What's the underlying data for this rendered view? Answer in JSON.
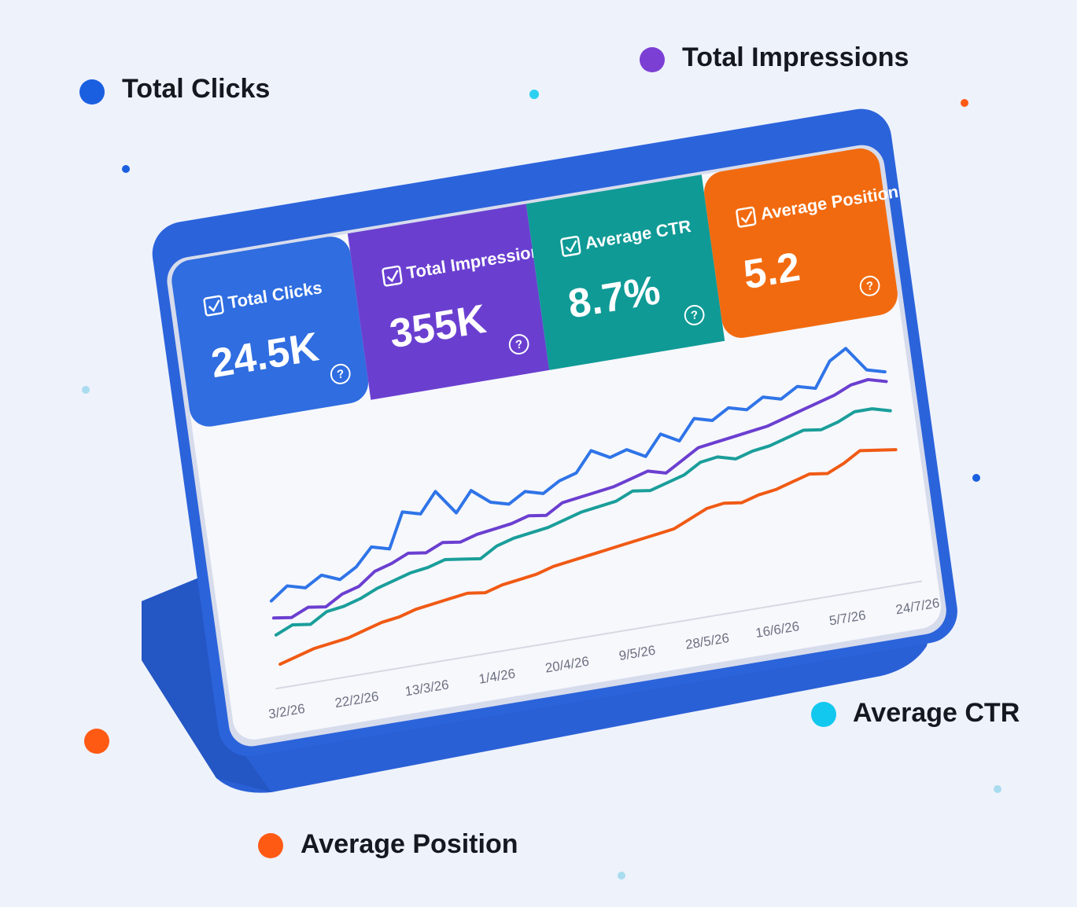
{
  "chart_data": {
    "type": "line",
    "categories": [
      "3/2/26",
      null,
      null,
      null,
      "22/2/26",
      null,
      null,
      null,
      "13/3/26",
      null,
      null,
      null,
      "1/4/26",
      null,
      null,
      null,
      "20/4/26",
      null,
      null,
      null,
      "9/5/26",
      null,
      null,
      null,
      "28/5/26",
      null,
      null,
      null,
      "16/6/26",
      null,
      null,
      null,
      "5/7/26",
      null,
      null,
      null,
      "24/7/26"
    ],
    "series": [
      {
        "name": "Total Clicks",
        "color": "#2f74e8",
        "values": [
          35,
          40,
          38,
          42,
          39,
          43,
          50,
          48,
          62,
          60,
          68,
          58,
          66,
          60,
          58,
          62,
          60,
          64,
          66,
          74,
          70,
          72,
          68,
          76,
          72,
          80,
          78,
          82,
          80,
          84,
          82,
          86,
          84,
          94,
          98,
          88,
          86
        ]
      },
      {
        "name": "Total Impressions",
        "color": "#6b3fd0",
        "values": [
          28,
          27,
          30,
          29,
          33,
          35,
          40,
          42,
          45,
          44,
          47,
          46,
          48,
          49,
          50,
          52,
          51,
          55,
          56,
          57,
          58,
          60,
          62,
          60,
          64,
          68,
          69,
          70,
          71,
          72,
          74,
          76,
          78,
          80,
          83,
          84,
          82
        ]
      },
      {
        "name": "Average CTR",
        "color": "#1a9e9a",
        "values": [
          21,
          24,
          23,
          27,
          28,
          30,
          33,
          35,
          37,
          38,
          40,
          39,
          38,
          42,
          44,
          45,
          46,
          48,
          50,
          51,
          52,
          55,
          54,
          56,
          58,
          62,
          63,
          61,
          63,
          64,
          66,
          68,
          67,
          69,
          72,
          72,
          70
        ]
      },
      {
        "name": "Average Position",
        "color": "#f05a14",
        "values": [
          9,
          11,
          13,
          14,
          15,
          17,
          19,
          20,
          22,
          23,
          24,
          25,
          24,
          26,
          27,
          28,
          30,
          31,
          32,
          33,
          34,
          35,
          36,
          37,
          40,
          43,
          44,
          43,
          45,
          46,
          48,
          50,
          49,
          52,
          56,
          55,
          54
        ]
      }
    ]
  },
  "cards": [
    {
      "value": "24.5K",
      "color": "#2f6de0"
    },
    {
      "value": "355K",
      "color": "#6a3fd0"
    },
    {
      "value": "8.7%",
      "color": "#0f9a96"
    },
    {
      "value": "5.2",
      "color": "#f26a0f"
    }
  ]
}
